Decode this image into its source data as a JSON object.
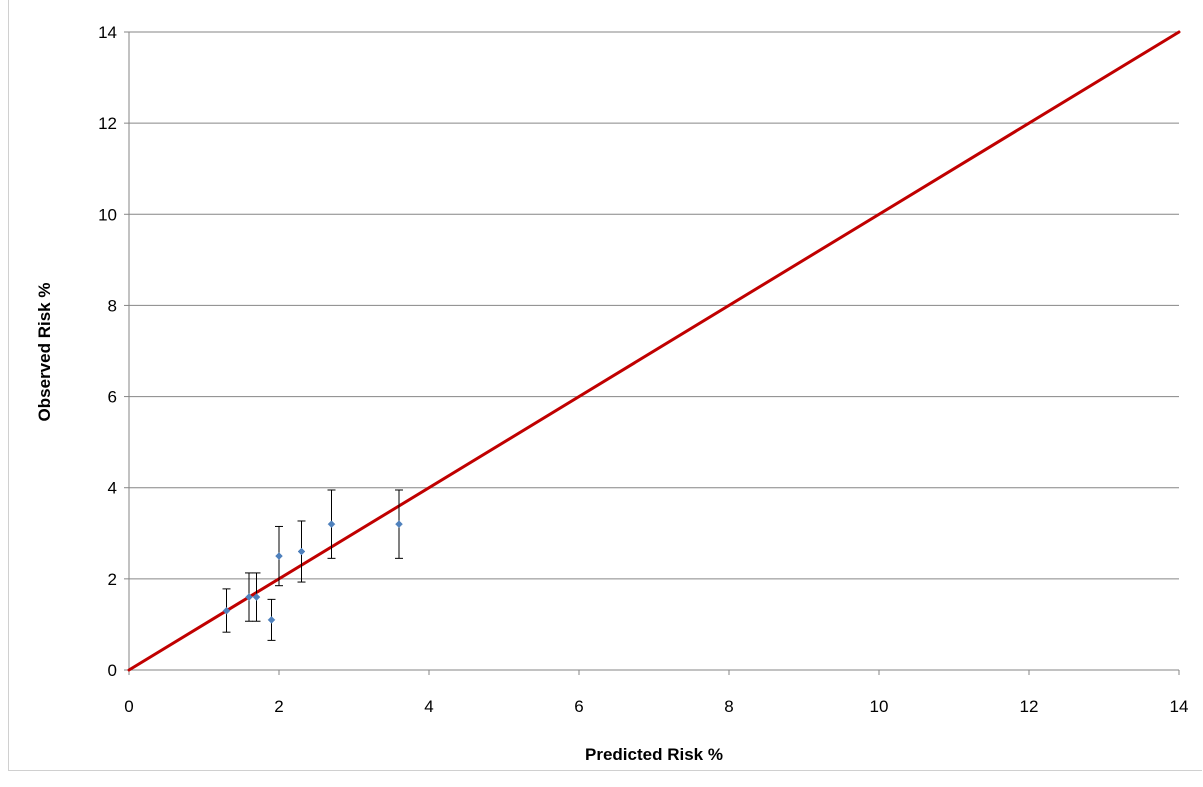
{
  "chart_data": {
    "type": "scatter",
    "title": "",
    "xlabel": "Predicted Risk %",
    "ylabel": "Observed Risk %",
    "xlim": [
      0,
      14
    ],
    "ylim": [
      0,
      14
    ],
    "x_ticks": [
      0,
      2,
      4,
      6,
      8,
      10,
      12,
      14
    ],
    "y_ticks": [
      0,
      2,
      4,
      6,
      8,
      10,
      12,
      14
    ],
    "grid": "horizontal",
    "legend": "none",
    "series": [
      {
        "type": "scatter",
        "color": "#4f81bd",
        "points": [
          {
            "x": 1.3,
            "y": 1.3,
            "low": 0.83,
            "high": 1.78
          },
          {
            "x": 1.6,
            "y": 1.6,
            "low": 1.07,
            "high": 2.13
          },
          {
            "x": 1.7,
            "y": 1.6,
            "low": 1.07,
            "high": 2.13
          },
          {
            "x": 1.9,
            "y": 1.1,
            "low": 0.65,
            "high": 1.55
          },
          {
            "x": 2.0,
            "y": 2.5,
            "low": 1.85,
            "high": 3.15
          },
          {
            "x": 2.3,
            "y": 2.6,
            "low": 1.93,
            "high": 3.27
          },
          {
            "x": 2.7,
            "y": 3.2,
            "low": 2.45,
            "high": 3.95
          },
          {
            "x": 3.6,
            "y": 3.2,
            "low": 2.45,
            "high": 3.95
          }
        ]
      },
      {
        "type": "line",
        "color": "#c00000",
        "points": [
          {
            "x": 0,
            "y": 0
          },
          {
            "x": 14,
            "y": 14
          }
        ]
      }
    ]
  }
}
